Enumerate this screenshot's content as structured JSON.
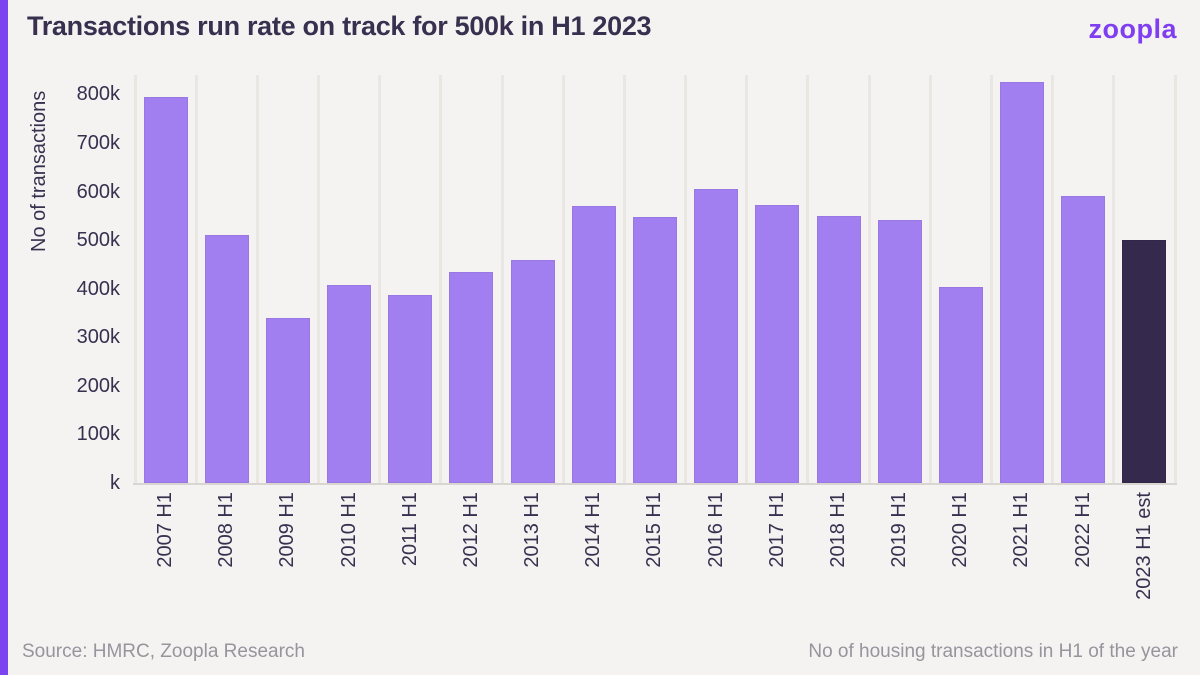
{
  "page": {
    "title": "Transactions run rate on track for 500k in H1 2023",
    "logo_text": "zoopla",
    "source": "Source: HMRC, Zoopla Research",
    "note": "No of housing transactions in H1 of the year"
  },
  "colors": {
    "background": "#f5f3f2",
    "accent_stripe": "#7c44ef",
    "bar": "#a27ff1",
    "bar_highlight": "#35294d",
    "gridline": "#eae7e3",
    "axis_line": "#d9d6d2",
    "text_dark": "#39304f",
    "text_muted": "#97949c",
    "logo": "#7f3ff0"
  },
  "chart_data": {
    "type": "bar",
    "title": "Transactions run rate on track for 500k in H1 2023",
    "xlabel": "",
    "ylabel": "No of transactions",
    "unit": "thousands of transactions",
    "categories": [
      "2007 H1",
      "2008 H1",
      "2009 H1",
      "2010 H1",
      "2011 H1",
      "2012 H1",
      "2013 H1",
      "2014 H1",
      "2015 H1",
      "2016 H1",
      "2017 H1",
      "2018 H1",
      "2019 H1",
      "2020 H1",
      "2021 H1",
      "2022 H1",
      "2023 H1 est"
    ],
    "values": [
      795,
      510,
      340,
      408,
      388,
      434,
      460,
      570,
      548,
      605,
      572,
      550,
      541,
      404,
      825,
      590,
      500
    ],
    "highlight_index": 16,
    "highlight_meaning": "2023 H1 estimate shown as dark bar",
    "ylim": [
      0,
      840
    ],
    "yticks": [
      {
        "value": 0,
        "label": "k"
      },
      {
        "value": 100,
        "label": "100k"
      },
      {
        "value": 200,
        "label": "200k"
      },
      {
        "value": 300,
        "label": "300k"
      },
      {
        "value": 400,
        "label": "400k"
      },
      {
        "value": 500,
        "label": "500k"
      },
      {
        "value": 600,
        "label": "600k"
      },
      {
        "value": 700,
        "label": "700k"
      },
      {
        "value": 800,
        "label": "800k"
      }
    ],
    "grid": "vertical-only",
    "legend": "none"
  }
}
